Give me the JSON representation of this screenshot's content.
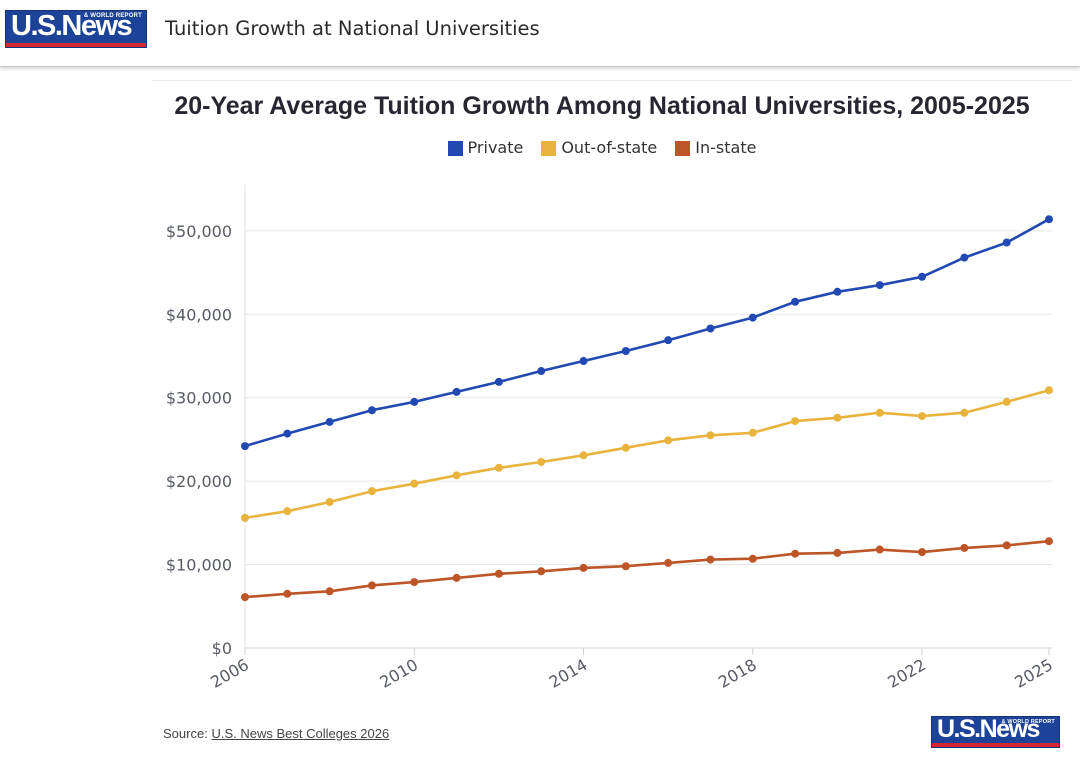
{
  "header": {
    "logo_text": "U.S.News",
    "logo_subtext": "& WORLD REPORT",
    "title": "Tuition Growth at National Universities"
  },
  "chart_data": {
    "type": "line",
    "title": "20-Year Average Tuition Growth Among National Universities, 2005-2025",
    "x": [
      2006,
      2007,
      2008,
      2009,
      2010,
      2011,
      2012,
      2013,
      2014,
      2015,
      2016,
      2017,
      2018,
      2019,
      2020,
      2021,
      2022,
      2023,
      2024,
      2025
    ],
    "series": [
      {
        "name": "Private",
        "color": "#2249b3",
        "values": [
          24200,
          25700,
          27100,
          28500,
          29500,
          30700,
          31900,
          33200,
          34400,
          35600,
          36900,
          38300,
          39600,
          41500,
          42700,
          43500,
          44500,
          46800,
          48600,
          51400
        ]
      },
      {
        "name": "Out-of-state",
        "color": "#e8b43e",
        "values": [
          15600,
          16400,
          17500,
          18800,
          19700,
          20700,
          21600,
          22300,
          23100,
          24000,
          24900,
          25500,
          25800,
          27200,
          27600,
          28200,
          27800,
          28200,
          29500,
          30900
        ]
      },
      {
        "name": "In-state",
        "color": "#bd5527",
        "values": [
          6100,
          6500,
          6800,
          7500,
          7900,
          8400,
          8900,
          9200,
          9600,
          9800,
          10200,
          10600,
          10700,
          11300,
          11400,
          11800,
          11500,
          12000,
          12300,
          12800
        ]
      }
    ],
    "xlim": [
      2006,
      2025
    ],
    "ylim": [
      0,
      55500
    ],
    "yticks": {
      "values": [
        0,
        10000,
        20000,
        30000,
        40000,
        50000
      ],
      "labels": [
        "$0",
        "$10,000",
        "$20,000",
        "$30,000",
        "$40,000",
        "$50,000"
      ]
    },
    "xticks": {
      "values": [
        2006,
        2010,
        2014,
        2018,
        2022,
        2025
      ],
      "labels": [
        "2006",
        "2010",
        "2014",
        "2018",
        "2022",
        "2025"
      ]
    },
    "grid": true,
    "legend": "top"
  },
  "footer": {
    "source_label": "Source:",
    "source_link": "U.S. News Best Colleges 2026",
    "logo_text": "U.S.News",
    "logo_subtext": "& WORLD REPORT"
  }
}
